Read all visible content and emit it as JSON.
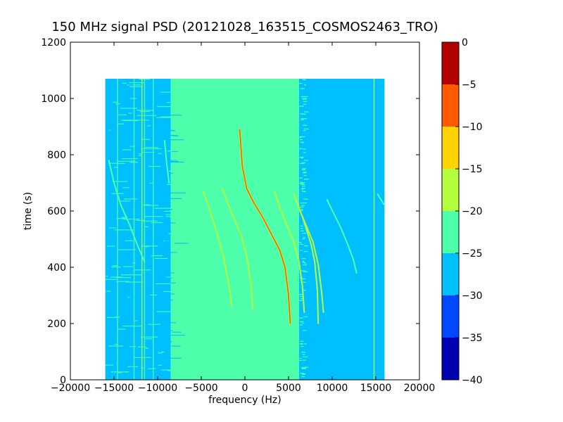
{
  "chart_data": {
    "type": "heatmap",
    "title": "150 MHz signal PSD (20121028_163515_COSMOS2463_TRO)",
    "xlabel": "frequency (Hz)",
    "ylabel": "time (s)",
    "xlim": [
      -20000,
      20000
    ],
    "ylim": [
      0,
      1200
    ],
    "xticks": [
      -20000,
      -15000,
      -10000,
      -5000,
      0,
      5000,
      10000,
      15000,
      20000
    ],
    "xtick_labels": [
      "−20000",
      "−15000",
      "−10000",
      "−5000",
      "0",
      "5000",
      "10000",
      "15000",
      "20000"
    ],
    "yticks": [
      0,
      200,
      400,
      600,
      800,
      1000,
      1200
    ],
    "ytick_labels": [
      "0",
      "200",
      "400",
      "600",
      "800",
      "1000",
      "1200"
    ],
    "data_extent": {
      "x": [
        -16000,
        16000
      ],
      "y": [
        0,
        1070
      ]
    },
    "background_regions": [
      {
        "x": [
          -16000,
          -8500
        ],
        "level": -26.5
      },
      {
        "x": [
          -8500,
          6200
        ],
        "level": -22.5
      },
      {
        "x": [
          6200,
          16000
        ],
        "level": -27.5
      }
    ],
    "doppler_traces": [
      {
        "name": "main carrier",
        "peak_level": -7,
        "points": [
          [
            -600,
            890
          ],
          [
            -300,
            760
          ],
          [
            200,
            680
          ],
          [
            1000,
            630
          ],
          [
            2000,
            580
          ],
          [
            3000,
            520
          ],
          [
            4000,
            460
          ],
          [
            4600,
            400
          ],
          [
            5000,
            300
          ],
          [
            5200,
            200
          ]
        ]
      },
      {
        "name": "harmonic a",
        "peak_level": -18,
        "points": [
          [
            -4800,
            670
          ],
          [
            -4200,
            620
          ],
          [
            -3600,
            560
          ],
          [
            -3000,
            500
          ],
          [
            -2400,
            430
          ],
          [
            -1800,
            330
          ],
          [
            -1500,
            260
          ]
        ]
      },
      {
        "name": "harmonic b",
        "peak_level": -18,
        "points": [
          [
            -2600,
            680
          ],
          [
            -2000,
            630
          ],
          [
            -1200,
            570
          ],
          [
            -400,
            510
          ],
          [
            200,
            440
          ],
          [
            700,
            340
          ],
          [
            900,
            250
          ]
        ]
      },
      {
        "name": "harmonic c",
        "peak_level": -18,
        "points": [
          [
            3400,
            670
          ],
          [
            4000,
            610
          ],
          [
            4800,
            550
          ],
          [
            5600,
            490
          ],
          [
            6200,
            420
          ],
          [
            6600,
            330
          ],
          [
            6800,
            240
          ]
        ]
      },
      {
        "name": "harmonic d",
        "peak_level": -18,
        "points": [
          [
            5600,
            660
          ],
          [
            6200,
            610
          ],
          [
            7000,
            550
          ],
          [
            7800,
            490
          ],
          [
            8400,
            410
          ],
          [
            8800,
            310
          ],
          [
            9000,
            240
          ]
        ]
      },
      {
        "name": "harmonic e",
        "peak_level": -18,
        "points": [
          [
            6000,
            630
          ],
          [
            6800,
            560
          ],
          [
            7600,
            480
          ],
          [
            8000,
            420
          ],
          [
            8300,
            320
          ],
          [
            8400,
            200
          ]
        ]
      },
      {
        "name": "harmonic f",
        "peak_level": -22,
        "points": [
          [
            9400,
            640
          ],
          [
            10200,
            590
          ],
          [
            11000,
            540
          ],
          [
            11800,
            480
          ],
          [
            12400,
            430
          ],
          [
            12800,
            380
          ]
        ]
      },
      {
        "name": "harmonic g",
        "peak_level": -22,
        "points": [
          [
            15200,
            660
          ],
          [
            15600,
            640
          ],
          [
            16000,
            620
          ]
        ]
      },
      {
        "name": "harmonic h",
        "peak_level": -22,
        "points": [
          [
            -15600,
            780
          ],
          [
            -15000,
            700
          ],
          [
            -14200,
            620
          ],
          [
            -13200,
            550
          ],
          [
            -12200,
            470
          ],
          [
            -11500,
            420
          ]
        ]
      },
      {
        "name": "harmonic i",
        "peak_level": -22,
        "points": [
          [
            -9200,
            850
          ],
          [
            -9000,
            780
          ],
          [
            -8700,
            700
          ]
        ]
      }
    ],
    "vertical_lines": [
      {
        "x": -14600,
        "level": -22
      },
      {
        "x": -12700,
        "level": -22
      },
      {
        "x": -11800,
        "level": -18
      },
      {
        "x": -11500,
        "level": -22
      },
      {
        "x": -10500,
        "level": -22
      },
      {
        "x": 14800,
        "level": -18
      }
    ],
    "colorbar": {
      "vmin": -40,
      "vmax": 0,
      "boundaries": [
        -40,
        -35,
        -30,
        -25,
        -20,
        -15,
        -10,
        -5,
        0
      ],
      "tick_labels": [
        "−40",
        "−35",
        "−30",
        "−25",
        "−20",
        "−15",
        "−10",
        "−5",
        "0"
      ],
      "colors": [
        "#0000b3",
        "#0048ff",
        "#00bfff",
        "#4dffaa",
        "#b3ff3d",
        "#ffd400",
        "#ff5a00",
        "#b30000"
      ]
    },
    "grid": false
  }
}
